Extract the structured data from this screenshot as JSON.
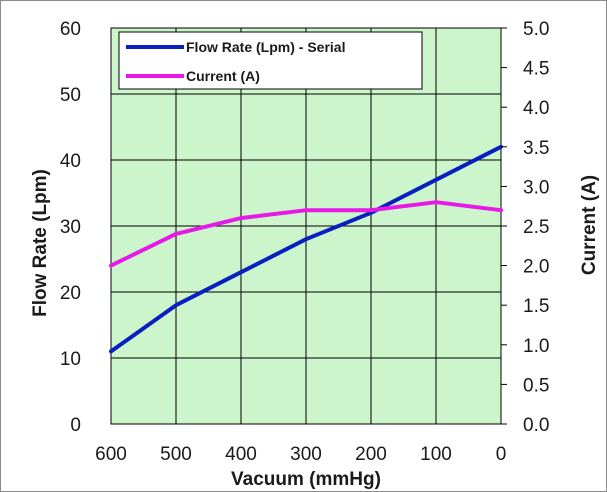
{
  "chart_data": {
    "type": "line",
    "xlabel": "Vacuum (mmHg)",
    "ylabel_left": "Flow Rate (Lpm)",
    "ylabel_right": "Current (A)",
    "x_ticks": [
      "600",
      "500",
      "400",
      "300",
      "200",
      "100",
      "0"
    ],
    "x_reversed": true,
    "xlim": [
      600,
      0
    ],
    "ylim_left": [
      0,
      60
    ],
    "ylim_right": [
      0.0,
      5.0
    ],
    "y_ticks_left": [
      "0",
      "10",
      "20",
      "30",
      "40",
      "50",
      "60"
    ],
    "y_ticks_right": [
      "0.0",
      "0.5",
      "1.0",
      "1.5",
      "2.0",
      "2.5",
      "3.0",
      "3.5",
      "4.0",
      "4.5",
      "5.0"
    ],
    "grid": true,
    "plot_background": "#ccf5cc",
    "legend_position": "top-left",
    "series": [
      {
        "name": "Flow Rate (Lpm) - Serial",
        "axis": "left",
        "color": "#0a1fc0",
        "x": [
          600,
          500,
          400,
          300,
          200,
          100,
          0
        ],
        "y": [
          11,
          18,
          23,
          28,
          32,
          37,
          42
        ]
      },
      {
        "name": "Current (A)",
        "axis": "right",
        "color": "#e619e6",
        "x": [
          600,
          500,
          400,
          300,
          200,
          100,
          0
        ],
        "y": [
          2.0,
          2.4,
          2.6,
          2.7,
          2.7,
          2.8,
          2.7
        ]
      }
    ]
  }
}
